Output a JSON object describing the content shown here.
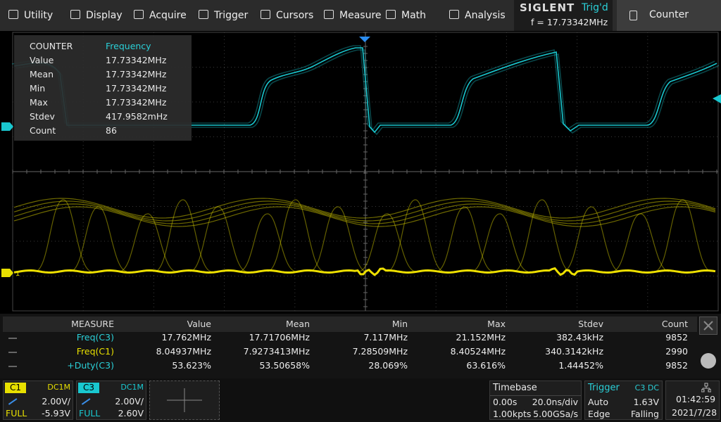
{
  "menu": [
    "Utility",
    "Display",
    "Acquire",
    "Trigger",
    "Cursors",
    "Measure",
    "Math",
    "Analysis"
  ],
  "brand": "SIGLENT",
  "trigger_status": "Trig'd",
  "trigger_freq": "f = 17.73342MHz",
  "counter_button": "Counter",
  "counter": {
    "title": "COUNTER",
    "mode": "Frequency",
    "rows": [
      [
        "Value",
        "17.73342MHz"
      ],
      [
        "Mean",
        "17.73342MHz"
      ],
      [
        "Min",
        "17.73342MHz"
      ],
      [
        "Max",
        "17.73342MHz"
      ],
      [
        "Stdev",
        "417.9582mHz"
      ],
      [
        "Count",
        "86"
      ]
    ]
  },
  "marker_c1": "1",
  "measure": {
    "headers": [
      "MEASURE",
      "Value",
      "Mean",
      "Min",
      "Max",
      "Stdev",
      "Count"
    ],
    "rows": [
      [
        "Freq(C3)",
        "17.762MHz",
        "17.71706MHz",
        "7.117MHz",
        "21.152MHz",
        "382.43kHz",
        "9852"
      ],
      [
        "Freq(C1)",
        "8.04937MHz",
        "7.9273413MHz",
        "7.28509MHz",
        "8.40524MHz",
        "340.3142kHz",
        "2990"
      ],
      [
        "+Duty(C3)",
        "53.623%",
        "53.50658%",
        "28.069%",
        "63.616%",
        "1.44452%",
        "9852"
      ]
    ]
  },
  "channels": [
    {
      "name": "C1",
      "coupling": "DC1M",
      "scale": "2.00V/",
      "bandwidth": "FULL",
      "offset": "-5.93V"
    },
    {
      "name": "C3",
      "coupling": "DC1M",
      "scale": "2.00V/",
      "bandwidth": "FULL",
      "offset": "2.60V"
    }
  ],
  "timebase": {
    "title": "Timebase",
    "delay": "0.00s",
    "scale": "20.0ns/div",
    "points": "1.00kpts",
    "rate": "5.00GSa/s"
  },
  "trigger": {
    "title": "Trigger",
    "source": "C3 DC",
    "mode": "Auto",
    "level": "1.63V",
    "type": "Edge",
    "slope": "Falling"
  },
  "clock": {
    "time": "01:42:59",
    "date": "2021/7/28"
  }
}
